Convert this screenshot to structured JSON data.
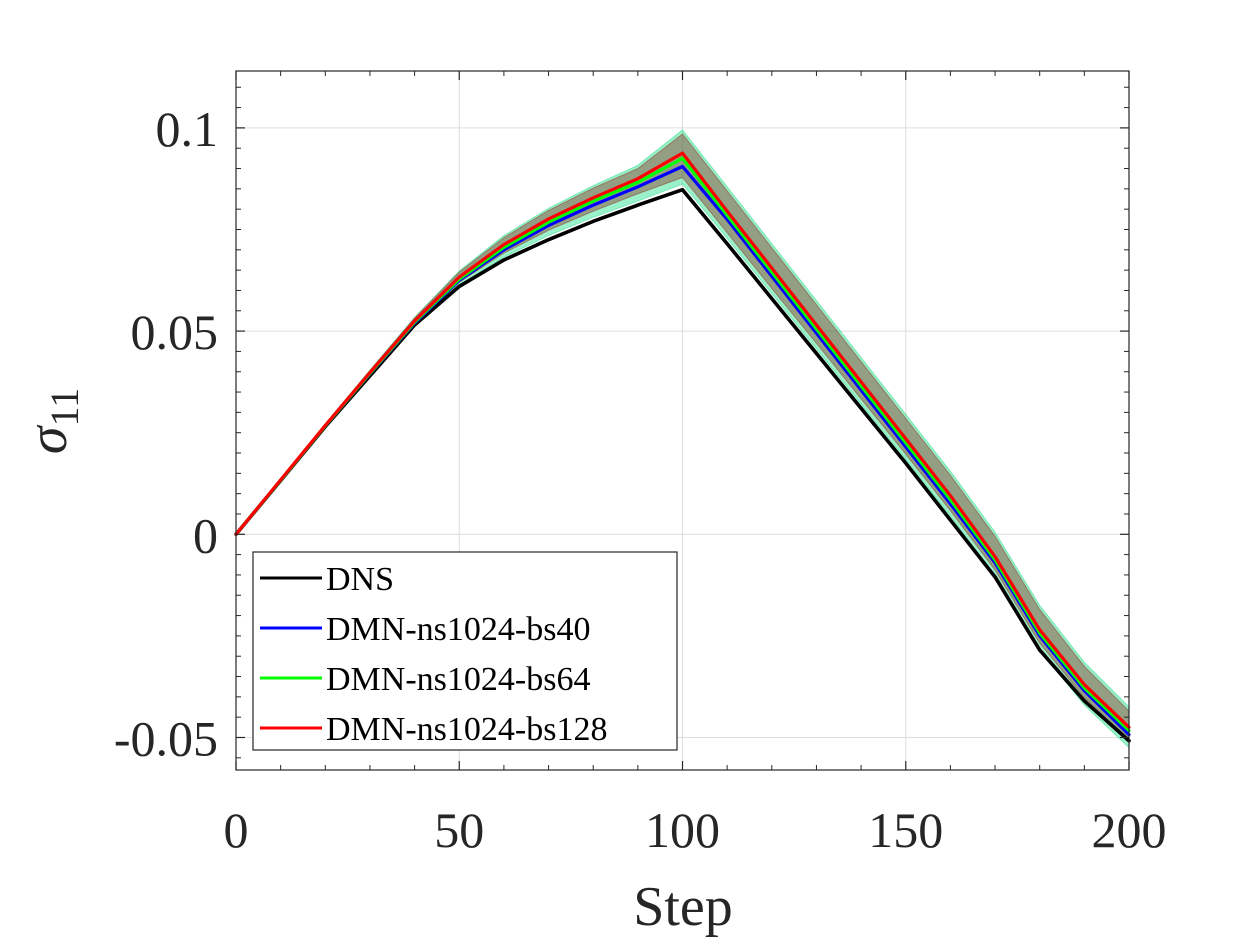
{
  "chart_data": {
    "type": "line",
    "title": "",
    "xlabel": "Step",
    "ylabel_symbol": "σ",
    "ylabel_subscript": "11",
    "xlim": [
      0,
      200
    ],
    "ylim": [
      -0.058,
      0.114
    ],
    "xticks": [
      0,
      50,
      100,
      150,
      200
    ],
    "xtick_labels": [
      "0",
      "50",
      "100",
      "150",
      "200"
    ],
    "yticks": [
      -0.05,
      0,
      0.05,
      0.1
    ],
    "ytick_labels": [
      "-0.05",
      "0",
      "0.05",
      "0.1"
    ],
    "grid": true,
    "legend_position": "bottom-left",
    "x": [
      0,
      10,
      20,
      30,
      40,
      50,
      60,
      70,
      80,
      90,
      100,
      110,
      120,
      130,
      140,
      150,
      160,
      170,
      180,
      190,
      200
    ],
    "series": [
      {
        "name": "DNS",
        "color": "#000000",
        "values": [
          0,
          0.0132,
          0.0265,
          0.039,
          0.0515,
          0.061,
          0.0675,
          0.0725,
          0.077,
          0.081,
          0.0848,
          0.0715,
          0.058,
          0.0445,
          0.031,
          0.0175,
          0.0035,
          -0.0105,
          -0.0285,
          -0.041,
          -0.0508
        ]
      },
      {
        "name": "DMN-ns1024-bs40",
        "color": "#0000ff",
        "values": [
          0,
          0.0133,
          0.0267,
          0.0395,
          0.052,
          0.0625,
          0.07,
          0.076,
          0.081,
          0.0855,
          0.0905,
          0.0775,
          0.0635,
          0.0495,
          0.0355,
          0.0215,
          0.0075,
          -0.007,
          -0.025,
          -0.0385,
          -0.0493
        ]
      },
      {
        "name": "DMN-ns1024-bs64",
        "color": "#00ff00",
        "values": [
          0,
          0.0133,
          0.0267,
          0.0396,
          0.0522,
          0.0628,
          0.0706,
          0.0768,
          0.082,
          0.0866,
          0.0925,
          0.0785,
          0.0645,
          0.0505,
          0.0365,
          0.0225,
          0.0085,
          -0.0063,
          -0.0243,
          -0.0378,
          -0.0483
        ]
      },
      {
        "name": "DMN-ns1024-bs128",
        "color": "#ff0000",
        "values": [
          0,
          0.0134,
          0.0268,
          0.0398,
          0.0525,
          0.0633,
          0.0713,
          0.0776,
          0.0828,
          0.0875,
          0.0938,
          0.0795,
          0.0655,
          0.0515,
          0.0375,
          0.0235,
          0.0095,
          -0.0055,
          -0.0235,
          -0.037,
          -0.0475
        ]
      }
    ],
    "bands": [
      {
        "name": "DMN-ns1024-bs64 spread",
        "color": "#22e08a",
        "lower": [
          0,
          0.0131,
          0.0264,
          0.039,
          0.0512,
          0.0612,
          0.0682,
          0.0735,
          0.078,
          0.082,
          0.0862,
          0.0728,
          0.0592,
          0.0456,
          0.032,
          0.0184,
          0.0044,
          -0.0102,
          -0.0285,
          -0.042,
          -0.0525
        ],
        "upper": [
          0,
          0.0136,
          0.0272,
          0.0404,
          0.0534,
          0.0648,
          0.0735,
          0.0802,
          0.0858,
          0.0908,
          0.0995,
          0.0855,
          0.0715,
          0.0575,
          0.0435,
          0.0295,
          0.0155,
          0.0005,
          -0.0175,
          -0.0315,
          -0.0425
        ]
      },
      {
        "name": "DMN-ns1024-bs128 spread",
        "color": "#8b3a2a",
        "lower": [
          0,
          0.0132,
          0.0265,
          0.0393,
          0.0518,
          0.062,
          0.0692,
          0.0748,
          0.0795,
          0.0838,
          0.0878,
          0.0742,
          0.0605,
          0.047,
          0.0333,
          0.0197,
          0.0058,
          -0.0088,
          -0.0268,
          -0.0402,
          -0.0508
        ],
        "upper": [
          0,
          0.0135,
          0.0271,
          0.0403,
          0.0532,
          0.0645,
          0.073,
          0.0797,
          0.0852,
          0.09,
          0.0985,
          0.0845,
          0.0705,
          0.0565,
          0.0425,
          0.0285,
          0.0145,
          -0.0005,
          -0.0185,
          -0.0325,
          -0.0435
        ]
      }
    ]
  }
}
